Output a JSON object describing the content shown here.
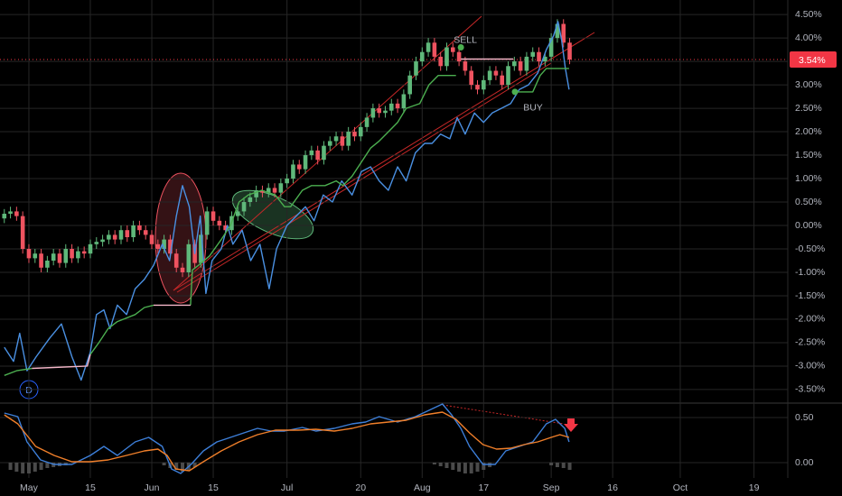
{
  "chart_data": [
    {
      "type": "candlestick",
      "open": [
        0.15,
        0.25,
        0.3,
        0.2,
        -0.5,
        -0.7,
        -0.6,
        -0.9,
        -0.75,
        -0.6,
        -0.8,
        -0.5,
        -0.7,
        -0.55,
        -0.6,
        -0.4,
        -0.35,
        -0.3,
        -0.2,
        -0.3,
        -0.1,
        -0.25,
        0.0,
        -0.1,
        -0.2,
        -0.4,
        -0.5,
        -0.3,
        -0.6,
        -0.9,
        -1.0,
        -0.4,
        -0.8,
        -0.2,
        0.3,
        0.1,
        0.0,
        -0.1,
        0.2,
        0.3,
        0.5,
        0.6,
        0.75,
        0.7,
        0.8,
        0.7,
        0.9,
        1.0,
        1.3,
        1.2,
        1.5,
        1.6,
        1.4,
        1.7,
        1.8,
        1.9,
        1.7,
        2.0,
        1.9,
        2.1,
        2.3,
        2.5,
        2.4,
        2.45,
        2.6,
        2.5,
        2.8,
        3.2,
        3.5,
        3.7,
        3.9,
        3.6,
        3.4,
        3.8,
        3.7,
        3.5,
        3.3,
        3.0,
        2.9,
        3.1,
        3.3,
        3.2,
        3.0,
        3.4,
        3.5,
        3.3,
        3.6,
        3.7,
        3.5,
        3.6,
        4.0,
        4.3,
        3.9
      ],
      "high": [
        0.35,
        0.4,
        0.4,
        0.3,
        -0.4,
        -0.5,
        -0.5,
        -0.65,
        -0.5,
        -0.5,
        -0.4,
        -0.4,
        -0.45,
        -0.45,
        -0.3,
        -0.25,
        -0.2,
        -0.1,
        -0.1,
        0.0,
        0.0,
        0.1,
        0.1,
        0.0,
        -0.1,
        -0.3,
        -0.2,
        -0.2,
        -0.5,
        -0.8,
        -0.3,
        -0.3,
        -0.1,
        0.4,
        0.4,
        0.2,
        0.1,
        0.3,
        0.4,
        0.6,
        0.7,
        0.85,
        0.85,
        0.9,
        0.9,
        1.0,
        1.1,
        1.4,
        1.4,
        1.6,
        1.7,
        1.7,
        1.8,
        1.9,
        2.0,
        2.0,
        2.1,
        2.1,
        2.2,
        2.4,
        2.6,
        2.6,
        2.55,
        2.7,
        2.7,
        2.9,
        3.3,
        3.6,
        3.8,
        4.0,
        4.0,
        3.7,
        3.9,
        3.9,
        3.8,
        3.6,
        3.4,
        3.1,
        3.2,
        3.4,
        3.4,
        3.3,
        3.5,
        3.6,
        3.6,
        3.7,
        3.8,
        3.8,
        3.7,
        4.1,
        4.4,
        4.4,
        4.0
      ],
      "low": [
        0.05,
        0.15,
        0.1,
        -0.6,
        -0.8,
        -0.8,
        -1.0,
        -1.0,
        -0.85,
        -0.9,
        -0.9,
        -0.8,
        -0.8,
        -0.7,
        -0.7,
        -0.5,
        -0.45,
        -0.4,
        -0.4,
        -0.4,
        -0.35,
        -0.35,
        -0.2,
        -0.3,
        -0.5,
        -0.6,
        -0.6,
        -0.7,
        -1.0,
        -1.1,
        -1.1,
        -0.9,
        -0.9,
        -0.3,
        0.0,
        -0.1,
        -0.2,
        -0.2,
        0.1,
        0.2,
        0.4,
        0.5,
        0.6,
        0.6,
        0.6,
        0.6,
        0.8,
        0.9,
        1.1,
        1.1,
        1.4,
        1.3,
        1.3,
        1.6,
        1.7,
        1.6,
        1.6,
        1.8,
        1.8,
        2.0,
        2.2,
        2.3,
        2.3,
        2.35,
        2.4,
        2.4,
        2.7,
        3.1,
        3.4,
        3.6,
        3.5,
        3.3,
        3.3,
        3.6,
        3.4,
        3.2,
        2.9,
        2.8,
        2.8,
        3.0,
        3.1,
        2.9,
        2.9,
        3.3,
        3.2,
        3.2,
        3.5,
        3.4,
        3.4,
        3.5,
        3.9,
        3.8,
        3.44
      ],
      "close": [
        0.25,
        0.3,
        0.2,
        -0.5,
        -0.7,
        -0.6,
        -0.9,
        -0.75,
        -0.6,
        -0.8,
        -0.5,
        -0.7,
        -0.55,
        -0.6,
        -0.4,
        -0.35,
        -0.3,
        -0.2,
        -0.3,
        -0.1,
        -0.25,
        0.0,
        -0.1,
        -0.2,
        -0.4,
        -0.5,
        -0.3,
        -0.6,
        -0.9,
        -1.0,
        -0.4,
        -0.8,
        -0.2,
        0.3,
        0.1,
        0.0,
        -0.1,
        0.2,
        0.3,
        0.5,
        0.6,
        0.75,
        0.7,
        0.8,
        0.7,
        0.9,
        1.0,
        1.3,
        1.2,
        1.5,
        1.6,
        1.4,
        1.7,
        1.8,
        1.9,
        1.7,
        2.0,
        1.9,
        2.1,
        2.3,
        2.5,
        2.4,
        2.45,
        2.6,
        2.5,
        2.8,
        3.2,
        3.5,
        3.7,
        3.9,
        3.6,
        3.4,
        3.8,
        3.7,
        3.5,
        3.3,
        3.0,
        2.9,
        3.1,
        3.3,
        3.2,
        3.0,
        3.4,
        3.5,
        3.3,
        3.6,
        3.7,
        3.5,
        3.6,
        4.0,
        4.3,
        3.9,
        3.54
      ],
      "up_color": "#5fb87a",
      "down_color": "#ef5360",
      "lines": [
        {
          "color": "#4a90e2",
          "x": [
            0,
            1.5,
            2.5,
            3.7,
            5.2,
            7.4,
            9.3,
            11,
            12.5,
            14,
            15,
            16.2,
            17.2,
            18.4,
            19.9,
            21.3,
            22.8,
            24.3,
            25.7,
            26.9,
            28,
            29,
            30.1,
            31,
            31.9,
            32.8,
            33.8,
            35.3,
            36.3,
            37.2,
            38.7,
            40.1,
            41.6,
            43.1,
            44.3,
            46,
            47.5,
            49,
            50.4,
            51.9,
            53.4,
            54.9,
            56.6,
            58.1,
            59.6,
            61,
            62.5,
            64,
            65.4,
            66.9,
            68.4,
            69.6,
            71,
            72.5,
            73.7,
            75,
            76.5,
            78,
            79.4,
            80.9,
            82.4,
            83.8,
            85.3,
            86.8,
            88.2,
            89.4,
            90.1,
            90.7,
            91.3,
            91.9
          ],
          "values": [
            -2.6,
            -2.9,
            -2.3,
            -3.1,
            -2.8,
            -2.4,
            -2.1,
            -2.8,
            -3.3,
            -2.7,
            -1.9,
            -1.8,
            -2.2,
            -1.7,
            -1.9,
            -1.35,
            -1.15,
            -0.85,
            -0.4,
            -0.75,
            0.2,
            0.85,
            0.4,
            -0.6,
            0.2,
            -1.45,
            -0.75,
            -0.5,
            0.0,
            -0.4,
            -0.1,
            -0.75,
            -0.4,
            -1.35,
            -0.5,
            0.0,
            0.2,
            0.4,
            0.1,
            0.65,
            0.5,
            0.95,
            0.65,
            1.15,
            1.25,
            0.95,
            0.75,
            1.25,
            0.95,
            1.55,
            1.75,
            1.75,
            1.95,
            1.85,
            2.3,
            1.95,
            2.4,
            2.2,
            2.4,
            2.5,
            2.6,
            2.9,
            3.0,
            3.25,
            3.75,
            4.05,
            4.35,
            3.95,
            3.35,
            2.9
          ]
        },
        {
          "color": "#4caf50",
          "x": [
            0,
            2,
            4.5,
            5,
            14,
            15.4,
            16.9,
            18.4,
            21.3,
            22.8,
            24.3,
            25,
            30.3,
            30.6,
            31.6,
            33.4,
            35.3,
            36.8,
            38.2,
            39.7,
            41.9,
            44.1,
            45.6,
            46.6,
            48.5,
            50,
            52.2,
            54,
            55.1,
            56.6,
            58.1,
            59.6,
            61,
            62.5,
            64,
            65.4,
            67.6,
            69.1,
            70.6,
            73.5,
            74,
            83.1,
            86,
            87.2,
            88.2,
            91.9
          ],
          "values": [
            -3.2,
            -3.1,
            -3.05,
            null,
            -2.75,
            -2.5,
            -2.2,
            -2.05,
            -1.9,
            -1.75,
            -1.7,
            null,
            -1.7,
            -0.95,
            -0.85,
            -0.65,
            -0.3,
            0.0,
            0.5,
            0.65,
            0.75,
            0.65,
            0.4,
            0.4,
            0.75,
            0.85,
            0.85,
            0.95,
            0.85,
            1.05,
            1.35,
            1.65,
            1.8,
            2.0,
            2.2,
            2.5,
            2.6,
            3.0,
            3.2,
            3.2,
            null,
            2.85,
            2.85,
            3.2,
            3.35,
            3.35
          ]
        },
        {
          "color": "#f4b6c8",
          "x": [
            4.5,
            13.5,
            14,
            19,
            24.3,
            30.3,
            72,
            74.3,
            82.8
          ],
          "values": [
            -3.05,
            -3.0,
            -2.75,
            null,
            -1.7,
            -1.7,
            null,
            3.55,
            3.55
          ]
        }
      ],
      "signals": [
        {
          "label": "SELL",
          "x": 74.3,
          "value": 3.8,
          "color": "#4caf50"
        },
        {
          "label": "BUY",
          "x": 83.1,
          "value": 2.85,
          "color": "#4caf50"
        }
      ],
      "last_price": {
        "value": 3.54,
        "label": "3.54%",
        "color": "#f23645"
      },
      "badge": "D",
      "xlim": [
        -0.7,
        127.5
      ],
      "ylim": [
        -3.79,
        4.81
      ],
      "xticks": [
        {
          "value": 4,
          "label": "May"
        },
        {
          "value": 14,
          "label": "15"
        },
        {
          "value": 24,
          "label": "Jun"
        },
        {
          "value": 34,
          "label": "15"
        },
        {
          "value": 46,
          "label": "Jul"
        },
        {
          "value": 58,
          "label": "20"
        },
        {
          "value": 68,
          "label": "Aug"
        },
        {
          "value": 78,
          "label": "17"
        },
        {
          "value": 89,
          "label": "Sep"
        },
        {
          "value": 99,
          "label": "16"
        },
        {
          "value": 110,
          "label": "Oct"
        },
        {
          "value": 122,
          "label": "19"
        }
      ],
      "yticks": [
        {
          "value": 4.5,
          "label": "4.50%"
        },
        {
          "value": 4.0,
          "label": "4.00%"
        },
        {
          "value": 3.5,
          "label": "3.50%"
        },
        {
          "value": 3.0,
          "label": "3.00%"
        },
        {
          "value": 2.5,
          "label": "2.50%"
        },
        {
          "value": 2.0,
          "label": "2.00%"
        },
        {
          "value": 1.5,
          "label": "1.50%"
        },
        {
          "value": 1.0,
          "label": "1.00%"
        },
        {
          "value": 0.5,
          "label": "0.50%"
        },
        {
          "value": 0,
          "label": "0.00%"
        },
        {
          "value": -0.5,
          "label": "-0.50%"
        },
        {
          "value": -1.0,
          "label": "-1.00%"
        },
        {
          "value": -1.5,
          "label": "-1.50%"
        },
        {
          "value": -2.0,
          "label": "-2.00%"
        },
        {
          "value": -2.5,
          "label": "-2.50%"
        },
        {
          "value": -3.0,
          "label": "-3.00%"
        },
        {
          "value": -3.5,
          "label": "-3.50%"
        }
      ],
      "grid": true
    },
    {
      "type": "line",
      "lines": [
        {
          "color": "#3d7fd9",
          "x": [
            0,
            2.2,
            3.7,
            5.9,
            8.1,
            11,
            14,
            16.2,
            18.4,
            21.3,
            23.5,
            25.7,
            27.2,
            28.7,
            30.4,
            32.4,
            34.6,
            36.8,
            39,
            41.2,
            43.4,
            45.6,
            48.5,
            50.7,
            53.7,
            56.6,
            58.8,
            61,
            64,
            66.9,
            69.1,
            71.3,
            72.8,
            74.3,
            75.7,
            77.9,
            79.9,
            81.6,
            83.8,
            86,
            88.2,
            89.7,
            91.2,
            91.9
          ],
          "values": [
            0.55,
            0.51,
            0.23,
            0.03,
            -0.02,
            -0.02,
            0.08,
            0.18,
            0.08,
            0.23,
            0.28,
            0.18,
            -0.07,
            -0.12,
            -0.02,
            0.13,
            0.23,
            0.28,
            0.33,
            0.38,
            0.35,
            0.35,
            0.39,
            0.35,
            0.38,
            0.43,
            0.45,
            0.51,
            0.45,
            0.51,
            0.58,
            0.65,
            0.53,
            0.38,
            0.18,
            -0.02,
            -0.02,
            0.13,
            0.18,
            0.23,
            0.43,
            0.48,
            0.38,
            0.23
          ]
        },
        {
          "color": "#f07f2a",
          "x": [
            0,
            2.2,
            5.1,
            8.1,
            11,
            14,
            16.9,
            19.9,
            22.8,
            25,
            26.5,
            27.9,
            30.1,
            32.4,
            35.3,
            38.2,
            41.2,
            44.1,
            47.8,
            50.7,
            53.7,
            56.6,
            59.6,
            62.5,
            65.4,
            68.4,
            71.3,
            73.5,
            75.7,
            77.9,
            80.1,
            82.4,
            84.6,
            86.8,
            89,
            90.4,
            91.9
          ],
          "values": [
            0.53,
            0.43,
            0.18,
            0.08,
            0.01,
            0.01,
            0.03,
            0.08,
            0.13,
            0.15,
            0.08,
            -0.07,
            -0.09,
            0.01,
            0.13,
            0.23,
            0.31,
            0.36,
            0.36,
            0.37,
            0.35,
            0.38,
            0.43,
            0.45,
            0.47,
            0.53,
            0.56,
            0.48,
            0.33,
            0.2,
            0.15,
            0.16,
            0.2,
            0.23,
            0.28,
            0.31,
            0.28
          ]
        }
      ],
      "histogram": {
        "color": "#4a4a4a",
        "x": [
          1,
          2,
          3,
          4,
          5,
          6,
          7,
          8,
          9,
          10,
          26,
          27,
          28,
          29,
          30,
          31,
          70,
          71,
          72,
          73,
          74,
          75,
          76,
          77,
          78,
          79,
          89,
          90,
          91,
          92
        ],
        "values": [
          -0.08,
          -0.1,
          -0.12,
          -0.12,
          -0.1,
          -0.08,
          -0.06,
          -0.05,
          -0.04,
          -0.03,
          -0.03,
          -0.06,
          -0.08,
          -0.1,
          -0.08,
          -0.05,
          -0.02,
          -0.04,
          -0.06,
          -0.08,
          -0.1,
          -0.12,
          -0.12,
          -0.1,
          -0.08,
          -0.05,
          -0.03,
          -0.05,
          -0.06,
          -0.08
        ]
      },
      "xlim": [
        -0.7,
        127.5
      ],
      "ylim": [
        -0.17,
        0.66
      ],
      "yticks": [
        {
          "value": 0.5,
          "label": "0.50"
        },
        {
          "value": 0,
          "label": "0.00"
        }
      ],
      "grid": true
    }
  ]
}
